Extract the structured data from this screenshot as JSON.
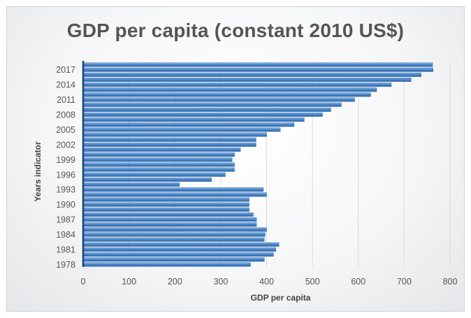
{
  "chart_data": {
    "type": "bar",
    "orientation": "horizontal",
    "title": "GDP per capita (constant 2010 US$)",
    "xlabel": "GDP per capita",
    "ylabel": "Years indicator",
    "xlim": [
      0,
      800
    ],
    "x_ticks": [
      "0",
      "100",
      "200",
      "300",
      "400",
      "500",
      "600",
      "700",
      "800"
    ],
    "y_tick_labels": [
      "2017",
      "2014",
      "2011",
      "2008",
      "2005",
      "2002",
      "1999",
      "1996",
      "1993",
      "1990",
      "1987",
      "1984",
      "1981",
      "1978"
    ],
    "grid": "vertical",
    "bar_color": "#4a86c8",
    "categories": [
      "1978",
      "1979",
      "1980",
      "1981",
      "1982",
      "1983",
      "1984",
      "1985",
      "1986",
      "1987",
      "1988",
      "1989",
      "1990",
      "1991",
      "1992",
      "1993",
      "1994",
      "1995",
      "1996",
      "1997",
      "1998",
      "1999",
      "2000",
      "2001",
      "2002",
      "2003",
      "2004",
      "2005",
      "2006",
      "2007",
      "2008",
      "2009",
      "2010",
      "2011",
      "2012",
      "2013",
      "2014",
      "2015",
      "2016",
      "2017",
      "2018"
    ],
    "values": [
      365,
      395,
      415,
      420,
      427,
      395,
      397,
      400,
      378,
      378,
      371,
      362,
      362,
      362,
      400,
      393,
      210,
      280,
      310,
      330,
      330,
      325,
      330,
      343,
      377,
      377,
      400,
      430,
      460,
      482,
      522,
      540,
      563,
      592,
      627,
      640,
      672,
      715,
      737,
      763,
      762
    ]
  }
}
